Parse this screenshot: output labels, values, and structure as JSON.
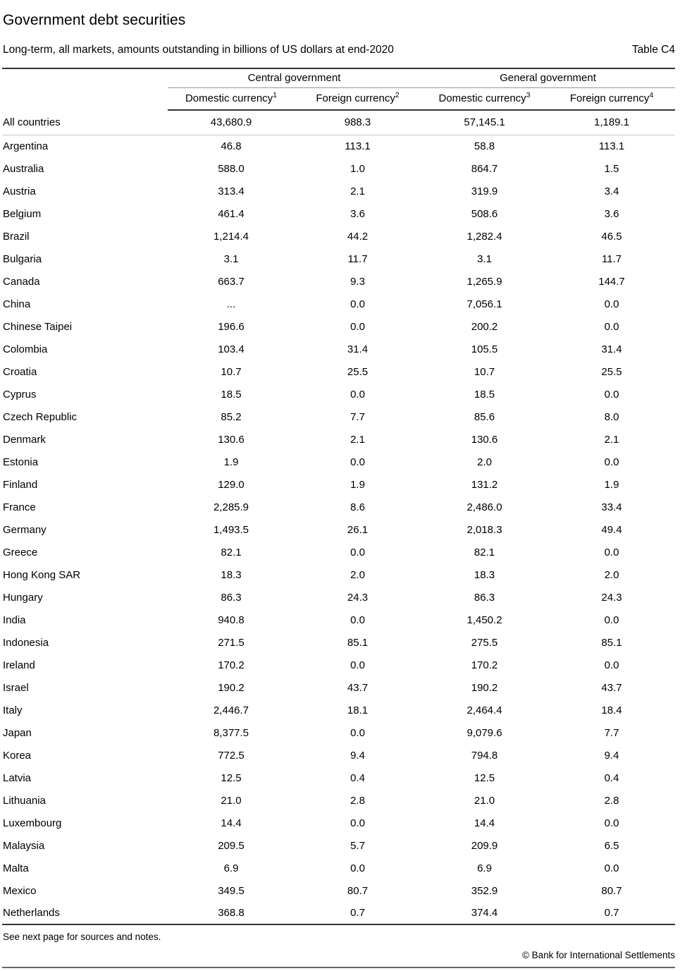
{
  "header": {
    "title": "Government debt securities",
    "subtitle": "Long-term, all markets, amounts outstanding in billions of US dollars at end-2020",
    "table_label": "Table C4"
  },
  "table": {
    "group_headers": [
      "Central government",
      "General government"
    ],
    "column_headers": [
      {
        "label": "Domestic currency",
        "sup": "1"
      },
      {
        "label": "Foreign currency",
        "sup": "2"
      },
      {
        "label": "Domestic currency",
        "sup": "3"
      },
      {
        "label": "Foreign currency",
        "sup": "4"
      }
    ],
    "total_row": {
      "label": "All countries",
      "values": [
        "43,680.9",
        "988.3",
        "57,145.1",
        "1,189.1"
      ]
    },
    "rows": [
      {
        "country": "Argentina",
        "values": [
          "46.8",
          "113.1",
          "58.8",
          "113.1"
        ]
      },
      {
        "country": "Australia",
        "values": [
          "588.0",
          "1.0",
          "864.7",
          "1.5"
        ]
      },
      {
        "country": "Austria",
        "values": [
          "313.4",
          "2.1",
          "319.9",
          "3.4"
        ]
      },
      {
        "country": "Belgium",
        "values": [
          "461.4",
          "3.6",
          "508.6",
          "3.6"
        ]
      },
      {
        "country": "Brazil",
        "values": [
          "1,214.4",
          "44.2",
          "1,282.4",
          "46.5"
        ]
      },
      {
        "country": "Bulgaria",
        "values": [
          "3.1",
          "11.7",
          "3.1",
          "11.7"
        ]
      },
      {
        "country": "Canada",
        "values": [
          "663.7",
          "9.3",
          "1,265.9",
          "144.7"
        ]
      },
      {
        "country": "China",
        "values": [
          "...",
          "0.0",
          "7,056.1",
          "0.0"
        ]
      },
      {
        "country": "Chinese Taipei",
        "values": [
          "196.6",
          "0.0",
          "200.2",
          "0.0"
        ]
      },
      {
        "country": "Colombia",
        "values": [
          "103.4",
          "31.4",
          "105.5",
          "31.4"
        ]
      },
      {
        "country": "Croatia",
        "values": [
          "10.7",
          "25.5",
          "10.7",
          "25.5"
        ]
      },
      {
        "country": "Cyprus",
        "values": [
          "18.5",
          "0.0",
          "18.5",
          "0.0"
        ]
      },
      {
        "country": "Czech Republic",
        "values": [
          "85.2",
          "7.7",
          "85.6",
          "8.0"
        ]
      },
      {
        "country": "Denmark",
        "values": [
          "130.6",
          "2.1",
          "130.6",
          "2.1"
        ]
      },
      {
        "country": "Estonia",
        "values": [
          "1.9",
          "0.0",
          "2.0",
          "0.0"
        ]
      },
      {
        "country": "Finland",
        "values": [
          "129.0",
          "1.9",
          "131.2",
          "1.9"
        ]
      },
      {
        "country": "France",
        "values": [
          "2,285.9",
          "8.6",
          "2,486.0",
          "33.4"
        ]
      },
      {
        "country": "Germany",
        "values": [
          "1,493.5",
          "26.1",
          "2,018.3",
          "49.4"
        ]
      },
      {
        "country": "Greece",
        "values": [
          "82.1",
          "0.0",
          "82.1",
          "0.0"
        ]
      },
      {
        "country": "Hong Kong SAR",
        "values": [
          "18.3",
          "2.0",
          "18.3",
          "2.0"
        ]
      },
      {
        "country": "Hungary",
        "values": [
          "86.3",
          "24.3",
          "86.3",
          "24.3"
        ]
      },
      {
        "country": "India",
        "values": [
          "940.8",
          "0.0",
          "1,450.2",
          "0.0"
        ]
      },
      {
        "country": "Indonesia",
        "values": [
          "271.5",
          "85.1",
          "275.5",
          "85.1"
        ]
      },
      {
        "country": "Ireland",
        "values": [
          "170.2",
          "0.0",
          "170.2",
          "0.0"
        ]
      },
      {
        "country": "Israel",
        "values": [
          "190.2",
          "43.7",
          "190.2",
          "43.7"
        ]
      },
      {
        "country": "Italy",
        "values": [
          "2,446.7",
          "18.1",
          "2,464.4",
          "18.4"
        ]
      },
      {
        "country": "Japan",
        "values": [
          "8,377.5",
          "0.0",
          "9,079.6",
          "7.7"
        ]
      },
      {
        "country": "Korea",
        "values": [
          "772.5",
          "9.4",
          "794.8",
          "9.4"
        ]
      },
      {
        "country": "Latvia",
        "values": [
          "12.5",
          "0.4",
          "12.5",
          "0.4"
        ]
      },
      {
        "country": "Lithuania",
        "values": [
          "21.0",
          "2.8",
          "21.0",
          "2.8"
        ]
      },
      {
        "country": "Luxembourg",
        "values": [
          "14.4",
          "0.0",
          "14.4",
          "0.0"
        ]
      },
      {
        "country": "Malaysia",
        "values": [
          "209.5",
          "5.7",
          "209.9",
          "6.5"
        ]
      },
      {
        "country": "Malta",
        "values": [
          "6.9",
          "0.0",
          "6.9",
          "0.0"
        ]
      },
      {
        "country": "Mexico",
        "values": [
          "349.5",
          "80.7",
          "352.9",
          "80.7"
        ]
      },
      {
        "country": "Netherlands",
        "values": [
          "368.8",
          "0.7",
          "374.4",
          "0.7"
        ]
      }
    ]
  },
  "footer": {
    "note": "See next page for sources and notes.",
    "copyright": "© Bank for International Settlements"
  }
}
